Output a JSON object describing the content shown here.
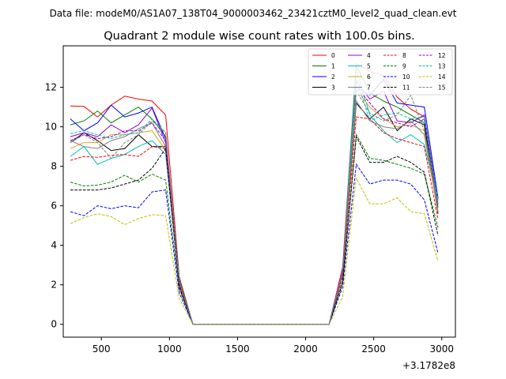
{
  "suptitle": "Data file: modeM0/AS1A07_138T04_9000003462_23421cztM0_level2_quad_clean.evt",
  "chart_data": {
    "type": "line",
    "title": "Quadrant 2 module wise count rates with 100.0s bins.",
    "xlabel": "",
    "ylabel": "",
    "x_offset_label": "+3.1782e8",
    "xlim": [
      220,
      3100
    ],
    "ylim": [
      -0.65,
      14.1
    ],
    "x_ticks": [
      500,
      1000,
      1500,
      2000,
      2500,
      3000
    ],
    "x_tick_labels": [
      "500",
      "1000",
      "1500",
      "2000",
      "2500",
      "3000"
    ],
    "y_ticks": [
      0,
      2,
      4,
      6,
      8,
      10,
      12
    ],
    "y_tick_labels": [
      "0",
      "2",
      "4",
      "6",
      "8",
      "10",
      "12"
    ],
    "grid": false,
    "legend_position": "top-right",
    "legend_columns": 4,
    "x": [
      272,
      372,
      472,
      572,
      672,
      772,
      872,
      972,
      1072,
      1172,
      1272,
      1372,
      1472,
      1572,
      1672,
      1772,
      1872,
      1972,
      2072,
      2172,
      2272,
      2372,
      2472,
      2572,
      2672,
      2772,
      2872,
      2972
    ],
    "series": [
      {
        "name": "0",
        "color": "#ff0000",
        "dash": "solid",
        "values": [
          11.05,
          11.03,
          10.5,
          11.1,
          11.55,
          11.4,
          11.3,
          10.6,
          2.4,
          0,
          0,
          0,
          0,
          0,
          0,
          0,
          0,
          0,
          0,
          0,
          2.9,
          13.2,
          12.8,
          12.6,
          11.5,
          10.9,
          10.5,
          6.3
        ]
      },
      {
        "name": "1",
        "color": "#008000",
        "dash": "solid",
        "values": [
          10.1,
          10.3,
          10.8,
          10.2,
          10.6,
          11.0,
          10.4,
          9.5,
          2.3,
          0,
          0,
          0,
          0,
          0,
          0,
          0,
          0,
          0,
          0,
          0,
          2.6,
          13.1,
          11.7,
          11.3,
          11.0,
          10.6,
          10.2,
          5.9
        ]
      },
      {
        "name": "2",
        "color": "#0000ff",
        "dash": "solid",
        "values": [
          10.4,
          9.8,
          10.2,
          11.1,
          10.5,
          10.7,
          11.0,
          9.4,
          2.2,
          0,
          0,
          0,
          0,
          0,
          0,
          0,
          0,
          0,
          0,
          0,
          2.7,
          12.0,
          11.6,
          12.4,
          11.2,
          11.1,
          11.0,
          6.4
        ]
      },
      {
        "name": "3",
        "color": "#000000",
        "dash": "solid",
        "values": [
          9.2,
          9.7,
          9.3,
          8.8,
          8.9,
          9.6,
          9.0,
          9.0,
          2.1,
          0,
          0,
          0,
          0,
          0,
          0,
          0,
          0,
          0,
          0,
          0,
          2.5,
          11.2,
          10.4,
          11.0,
          9.8,
          10.4,
          10.1,
          5.6
        ]
      },
      {
        "name": "4",
        "color": "#9400d3",
        "dash": "solid",
        "values": [
          9.5,
          9.7,
          9.5,
          10.1,
          9.7,
          10.1,
          10.95,
          9.2,
          2.2,
          0,
          0,
          0,
          0,
          0,
          0,
          0,
          0,
          0,
          0,
          0,
          2.8,
          12.3,
          11.4,
          11.8,
          10.3,
          10.2,
          10.6,
          6.1
        ]
      },
      {
        "name": "5",
        "color": "#00bfbf",
        "dash": "solid",
        "values": [
          8.5,
          9.0,
          8.1,
          8.4,
          8.6,
          9.0,
          9.3,
          8.6,
          2.0,
          0,
          0,
          0,
          0,
          0,
          0,
          0,
          0,
          0,
          0,
          0,
          2.6,
          12.9,
          10.6,
          9.8,
          9.2,
          9.6,
          9.1,
          6.2
        ]
      },
      {
        "name": "6",
        "color": "#daa520",
        "dash": "solid",
        "values": [
          8.9,
          9.2,
          9.2,
          9.6,
          9.6,
          9.7,
          9.8,
          8.8,
          2.0,
          0,
          0,
          0,
          0,
          0,
          0,
          0,
          0,
          0,
          0,
          0,
          2.5,
          11.9,
          11.0,
          10.4,
          10.0,
          10.1,
          9.8,
          5.7
        ]
      },
      {
        "name": "7",
        "color": "#808080",
        "dash": "solid",
        "values": [
          9.3,
          9.0,
          8.9,
          9.3,
          9.5,
          9.9,
          10.2,
          9.0,
          2.1,
          0,
          0,
          0,
          0,
          0,
          0,
          0,
          0,
          0,
          0,
          0,
          2.6,
          11.3,
          10.3,
          10.0,
          9.9,
          10.3,
          9.6,
          5.7
        ]
      },
      {
        "name": "8",
        "color": "#ff0000",
        "dash": "dashed",
        "values": [
          8.3,
          8.5,
          8.45,
          8.55,
          8.6,
          8.5,
          9.0,
          8.9,
          2.0,
          0,
          0,
          0,
          0,
          0,
          0,
          0,
          0,
          0,
          0,
          0,
          2.4,
          10.5,
          10.4,
          9.7,
          9.4,
          9.2,
          9.0,
          5.3
        ]
      },
      {
        "name": "9",
        "color": "#008000",
        "dash": "dashed",
        "values": [
          7.2,
          7.0,
          7.05,
          7.2,
          7.55,
          7.2,
          7.6,
          7.3,
          1.8,
          0,
          0,
          0,
          0,
          0,
          0,
          0,
          0,
          0,
          0,
          0,
          2.2,
          9.6,
          8.4,
          8.3,
          8.1,
          7.9,
          7.6,
          4.9
        ]
      },
      {
        "name": "10",
        "color": "#0000ff",
        "dash": "dashed",
        "values": [
          5.7,
          5.5,
          6.0,
          5.85,
          6.0,
          5.9,
          6.7,
          6.8,
          1.6,
          0,
          0,
          0,
          0,
          0,
          0,
          0,
          0,
          0,
          0,
          0,
          1.9,
          8.1,
          7.1,
          7.3,
          7.3,
          7.1,
          6.3,
          3.6
        ]
      },
      {
        "name": "11",
        "color": "#000000",
        "dash": "dashed",
        "values": [
          6.8,
          6.8,
          6.8,
          6.9,
          7.1,
          7.3,
          7.9,
          8.9,
          1.9,
          0,
          0,
          0,
          0,
          0,
          0,
          0,
          0,
          0,
          0,
          0,
          2.1,
          9.5,
          8.2,
          8.2,
          8.5,
          8.2,
          7.7,
          4.5
        ]
      },
      {
        "name": "12",
        "color": "#9400d3",
        "dash": "dashed",
        "values": [
          9.3,
          9.6,
          9.4,
          9.5,
          9.8,
          9.8,
          10.2,
          9.3,
          2.1,
          0,
          0,
          0,
          0,
          0,
          0,
          0,
          0,
          0,
          0,
          0,
          2.6,
          12.0,
          11.2,
          10.4,
          10.2,
          10.0,
          10.4,
          6.0
        ]
      },
      {
        "name": "13",
        "color": "#00bfbf",
        "dash": "dashed",
        "values": [
          9.65,
          9.8,
          9.6,
          9.4,
          9.6,
          9.7,
          10.4,
          9.7,
          2.2,
          0,
          0,
          0,
          0,
          0,
          0,
          0,
          0,
          0,
          0,
          0,
          2.7,
          12.5,
          10.3,
          10.6,
          10.7,
          10.4,
          10.5,
          6.3
        ]
      },
      {
        "name": "14",
        "color": "#bfbf00",
        "dash": "dashed",
        "values": [
          5.1,
          5.4,
          5.6,
          5.45,
          5.05,
          5.35,
          5.55,
          5.5,
          1.3,
          0,
          0,
          0,
          0,
          0,
          0,
          0,
          0,
          0,
          0,
          0,
          1.4,
          7.4,
          6.1,
          6.1,
          6.4,
          5.7,
          5.6,
          3.2
        ]
      },
      {
        "name": "15",
        "color": "#808080",
        "dash": "dashed",
        "values": [
          9.2,
          9.6,
          9.2,
          8.4,
          9.2,
          9.6,
          10.3,
          9.7,
          2.2,
          0,
          0,
          0,
          0,
          0,
          0,
          0,
          0,
          0,
          0,
          0,
          2.7,
          11.8,
          10.7,
          10.3,
          10.6,
          11.6,
          9.8,
          6.1
        ]
      }
    ]
  }
}
